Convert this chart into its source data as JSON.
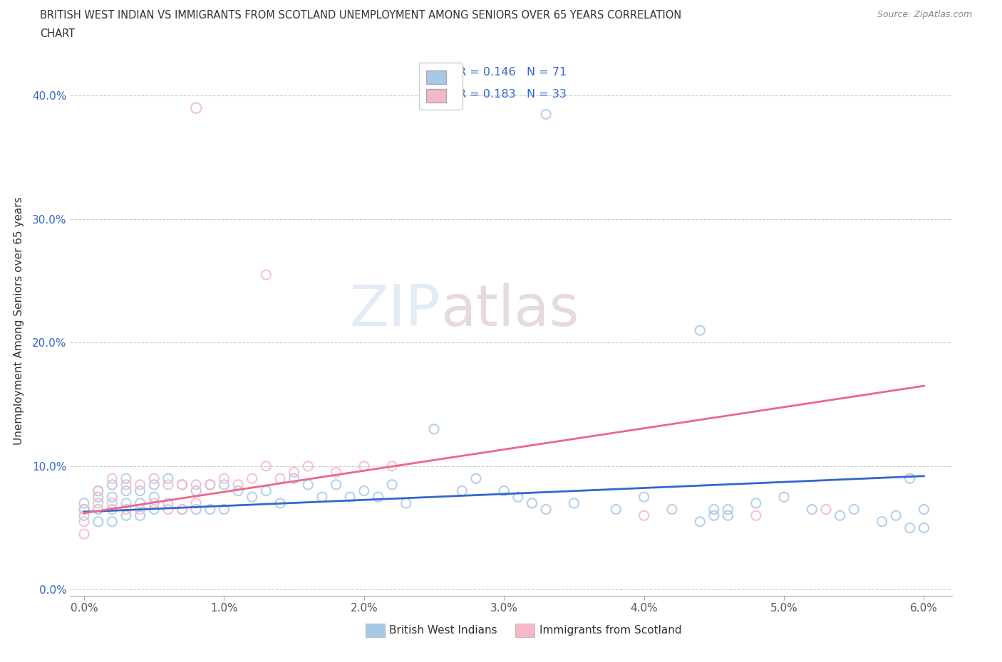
{
  "title_line1": "BRITISH WEST INDIAN VS IMMIGRANTS FROM SCOTLAND UNEMPLOYMENT AMONG SENIORS OVER 65 YEARS CORRELATION",
  "title_line2": "CHART",
  "source": "Source: ZipAtlas.com",
  "xlabel_ticks": [
    "0.0%",
    "1.0%",
    "2.0%",
    "3.0%",
    "4.0%",
    "5.0%",
    "6.0%"
  ],
  "ylabel_ticks": [
    "0.0%",
    "10.0%",
    "20.0%",
    "30.0%",
    "40.0%"
  ],
  "xlim": [
    -0.001,
    0.062
  ],
  "ylim": [
    -0.005,
    0.44
  ],
  "watermark": "ZIPatlas",
  "color_blue": "#a8c8e8",
  "color_pink": "#f4b8c8",
  "color_blue_line": "#3366cc",
  "color_pink_line": "#ee6688",
  "blue_r": 0.146,
  "blue_n": 71,
  "pink_r": 0.183,
  "pink_n": 33,
  "blue_line_x0": 0.0,
  "blue_line_y0": 0.063,
  "blue_line_x1": 0.06,
  "blue_line_y1": 0.092,
  "pink_line_x0": 0.0,
  "pink_line_y0": 0.062,
  "pink_line_x1": 0.06,
  "pink_line_y1": 0.165,
  "blue_x": [
    0.0,
    0.0,
    0.0,
    0.001,
    0.001,
    0.001,
    0.001,
    0.002,
    0.002,
    0.002,
    0.002,
    0.003,
    0.003,
    0.003,
    0.003,
    0.004,
    0.004,
    0.004,
    0.005,
    0.005,
    0.005,
    0.006,
    0.006,
    0.007,
    0.007,
    0.008,
    0.008,
    0.009,
    0.009,
    0.01,
    0.01,
    0.011,
    0.012,
    0.013,
    0.014,
    0.015,
    0.016,
    0.017,
    0.018,
    0.019,
    0.02,
    0.021,
    0.022,
    0.023,
    0.025,
    0.027,
    0.028,
    0.03,
    0.031,
    0.032,
    0.033,
    0.035,
    0.038,
    0.04,
    0.042,
    0.045,
    0.046,
    0.048,
    0.05,
    0.052,
    0.054,
    0.055,
    0.057,
    0.058,
    0.059,
    0.06,
    0.06,
    0.045,
    0.044,
    0.046,
    0.059
  ],
  "blue_y": [
    0.07,
    0.065,
    0.06,
    0.08,
    0.075,
    0.065,
    0.055,
    0.085,
    0.075,
    0.065,
    0.055,
    0.09,
    0.08,
    0.07,
    0.06,
    0.08,
    0.07,
    0.06,
    0.085,
    0.075,
    0.065,
    0.09,
    0.07,
    0.085,
    0.065,
    0.08,
    0.065,
    0.085,
    0.065,
    0.085,
    0.065,
    0.08,
    0.075,
    0.08,
    0.07,
    0.09,
    0.085,
    0.075,
    0.085,
    0.075,
    0.08,
    0.075,
    0.085,
    0.07,
    0.13,
    0.08,
    0.09,
    0.08,
    0.075,
    0.07,
    0.065,
    0.07,
    0.065,
    0.075,
    0.065,
    0.065,
    0.065,
    0.07,
    0.075,
    0.065,
    0.06,
    0.065,
    0.055,
    0.06,
    0.05,
    0.065,
    0.05,
    0.06,
    0.055,
    0.06,
    0.09
  ],
  "blue_outlier_x": [
    0.033
  ],
  "blue_outlier_y": [
    0.385
  ],
  "blue_outlier2_x": [
    0.044
  ],
  "blue_outlier2_y": [
    0.21
  ],
  "pink_x": [
    0.0,
    0.0,
    0.0,
    0.001,
    0.001,
    0.002,
    0.002,
    0.003,
    0.003,
    0.004,
    0.004,
    0.005,
    0.005,
    0.006,
    0.006,
    0.007,
    0.007,
    0.008,
    0.008,
    0.009,
    0.01,
    0.011,
    0.012,
    0.013,
    0.014,
    0.015,
    0.016,
    0.018,
    0.02,
    0.022,
    0.04,
    0.048,
    0.053
  ],
  "pink_y": [
    0.065,
    0.055,
    0.045,
    0.08,
    0.07,
    0.09,
    0.07,
    0.085,
    0.065,
    0.085,
    0.065,
    0.09,
    0.07,
    0.085,
    0.065,
    0.085,
    0.065,
    0.085,
    0.07,
    0.085,
    0.09,
    0.085,
    0.09,
    0.1,
    0.09,
    0.095,
    0.1,
    0.095,
    0.1,
    0.1,
    0.06,
    0.06,
    0.065
  ],
  "pink_outlier_x": [
    0.013
  ],
  "pink_outlier_y": [
    0.255
  ],
  "pink_big_outlier_x": [
    0.008
  ],
  "pink_big_outlier_y": [
    0.39
  ]
}
